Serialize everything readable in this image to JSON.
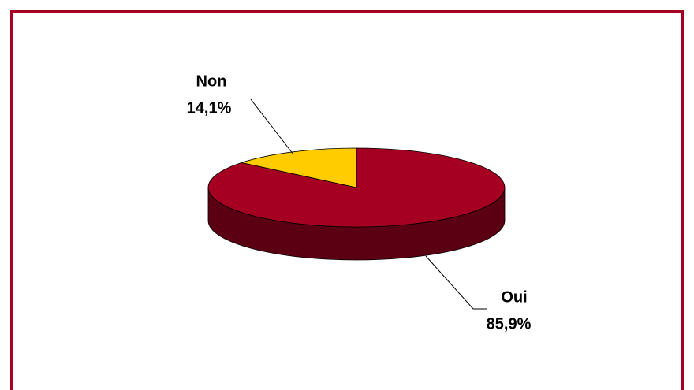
{
  "chart_data": {
    "type": "pie3d",
    "categories": [
      "Oui",
      "Non"
    ],
    "values": [
      85.9,
      14.1
    ],
    "value_labels": [
      "85,9%",
      "14,1%"
    ],
    "colors": [
      "#a50021",
      "#ffcc00"
    ]
  }
}
